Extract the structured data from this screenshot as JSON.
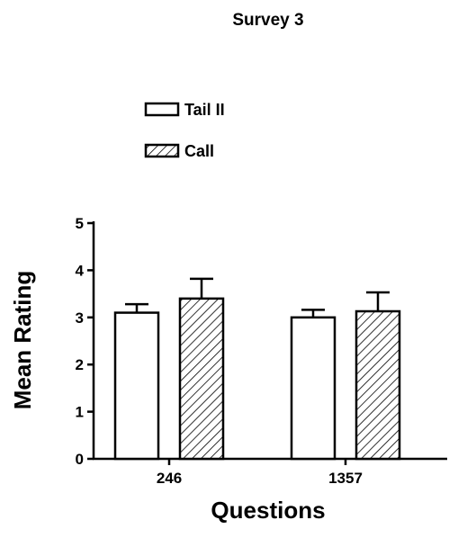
{
  "chart_data": {
    "type": "bar",
    "title": "Survey 3",
    "xlabel": "Questions",
    "ylabel": "Mean Rating",
    "categories": [
      "246",
      "1357"
    ],
    "series": [
      {
        "name": "Tail II",
        "pattern": "solid-white",
        "values": [
          3.1,
          3.0
        ],
        "errors": [
          0.18,
          0.16
        ]
      },
      {
        "name": "Call",
        "pattern": "diagonal-hatch",
        "values": [
          3.4,
          3.13
        ],
        "errors": [
          0.42,
          0.4
        ]
      }
    ],
    "ylim": [
      0,
      5
    ],
    "yticks": [
      "0",
      "1",
      "2",
      "3",
      "4",
      "5"
    ],
    "grid": false,
    "legend_position": "top-left",
    "colors": {
      "stroke": "#000000",
      "fill": "#ffffff"
    }
  }
}
